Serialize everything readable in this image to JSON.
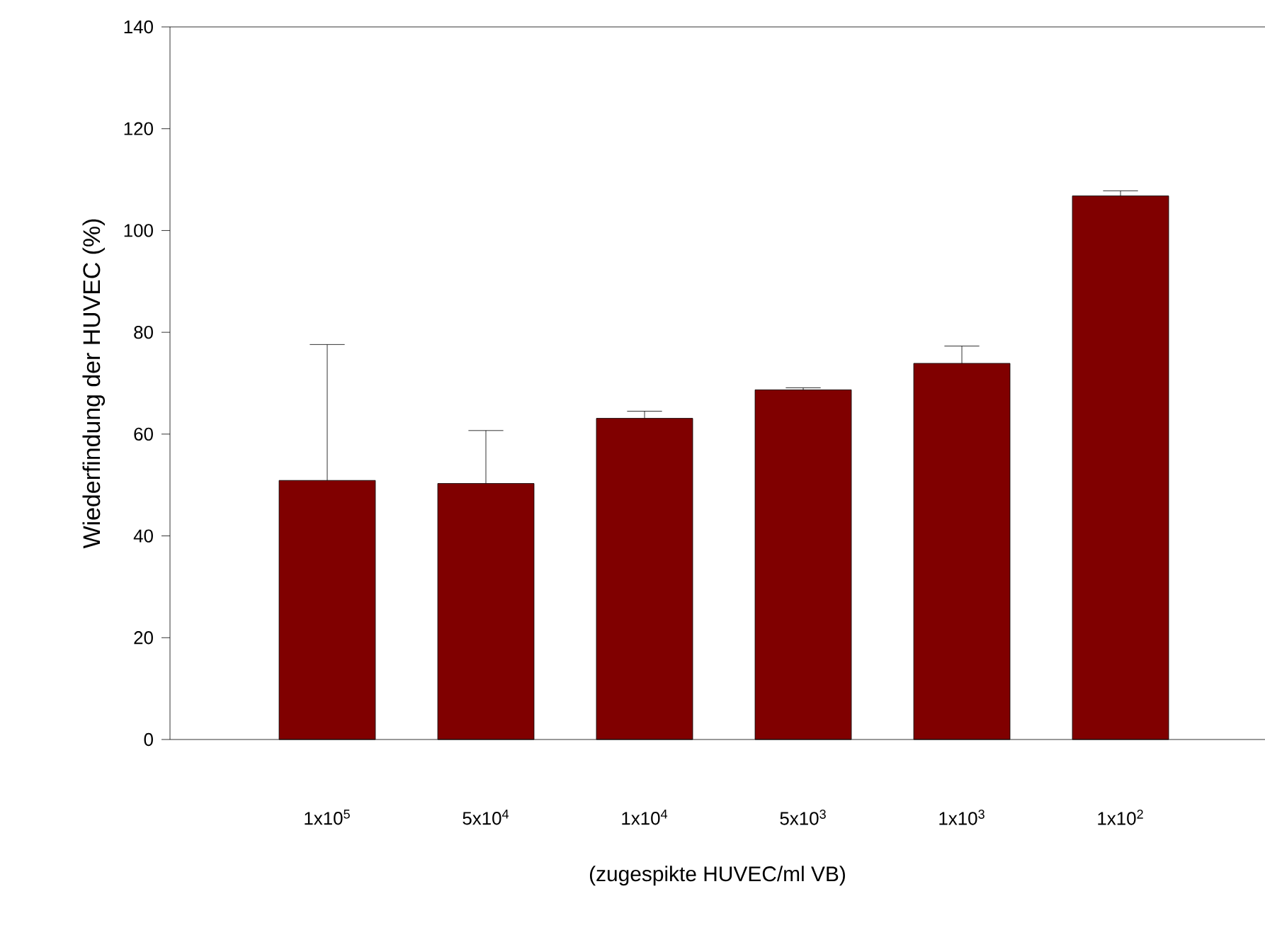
{
  "chart_data": {
    "type": "bar",
    "xlabel": "(zugespikte HUVEC/ml VB)",
    "ylabel": "Wiederfindung der HUVEC (%)",
    "categories": [
      "1x10$^{5}$",
      "5x10$^{4}$",
      "1x10$^{4}$",
      "5x10$^{3}$",
      "1x10$^{3}$",
      "1x10$^{2}$"
    ],
    "values": [
      50.9,
      50.3,
      63.1,
      68.7,
      73.9,
      106.8
    ],
    "errors": [
      [
        50.9,
        77.6
      ],
      [
        50.3,
        60.7
      ],
      [
        63.1,
        64.5
      ],
      [
        68.7,
        69.1
      ],
      [
        73.9,
        77.3
      ],
      [
        106.8,
        107.8
      ]
    ],
    "color": "#800000",
    "ylim": [
      0,
      140
    ],
    "yticks": [
      0,
      20,
      40,
      60,
      80,
      100,
      120,
      140
    ]
  }
}
